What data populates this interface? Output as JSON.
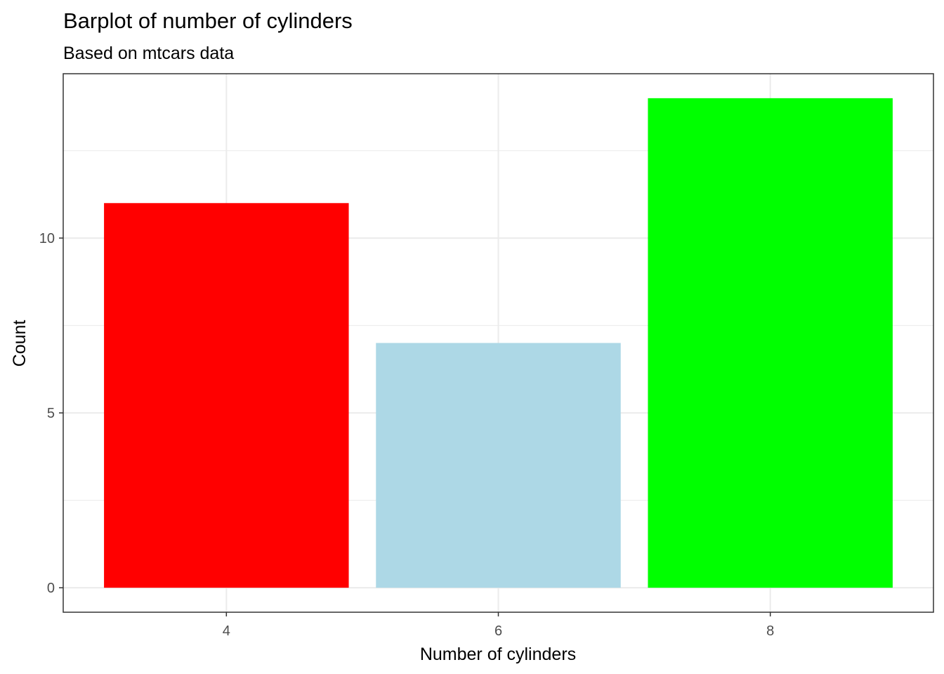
{
  "chart_data": {
    "type": "bar",
    "title": "Barplot of number of cylinders",
    "subtitle": "Based on mtcars data",
    "xlabel": "Number of cylinders",
    "ylabel": "Count",
    "categories": [
      "4",
      "6",
      "8"
    ],
    "values": [
      11,
      7,
      14
    ],
    "colors": [
      "#ff0000",
      "#add8e6",
      "#00ff00"
    ],
    "x_ticks": [
      "4",
      "6",
      "8"
    ],
    "y_ticks": [
      0,
      5,
      10
    ],
    "y_tick_labels": [
      "0",
      "5",
      "10"
    ],
    "ylim": [
      -0.7,
      14.7
    ],
    "xlim": [
      2.8,
      9.2
    ],
    "grid": true,
    "theme": "bw",
    "legend": "none"
  }
}
